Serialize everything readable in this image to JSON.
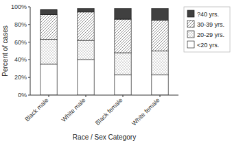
{
  "chart_data": {
    "type": "bar",
    "stacked": true,
    "categories": [
      "Black male",
      "White male",
      "Black female",
      "White female"
    ],
    "series": [
      {
        "name": "<20 yrs.",
        "color": "#ffffff",
        "values": [
          35,
          40,
          23,
          23
        ]
      },
      {
        "name": "20-29 yrs.",
        "color": "#ffffff",
        "values": [
          28,
          22,
          25,
          27
        ]
      },
      {
        "name": "30-39 yrs.",
        "color": "#ffffff",
        "values": [
          28,
          32,
          38,
          35
        ]
      },
      {
        "name": "?40 yrs.",
        "color": "#404040",
        "values": [
          6,
          4,
          12,
          13
        ]
      }
    ],
    "xlabel": "Race / Sex Category",
    "ylabel": "Percent of cases",
    "ylim": [
      0,
      100
    ],
    "yticks": [
      {
        "value": 0,
        "label": "0%"
      },
      {
        "value": 20,
        "label": "20%"
      },
      {
        "value": 40,
        "label": "40%"
      },
      {
        "value": 60,
        "label": "60%"
      },
      {
        "value": 80,
        "label": "80%"
      },
      {
        "value": 100,
        "label": "100%"
      }
    ],
    "grid": false,
    "legend": "right"
  }
}
